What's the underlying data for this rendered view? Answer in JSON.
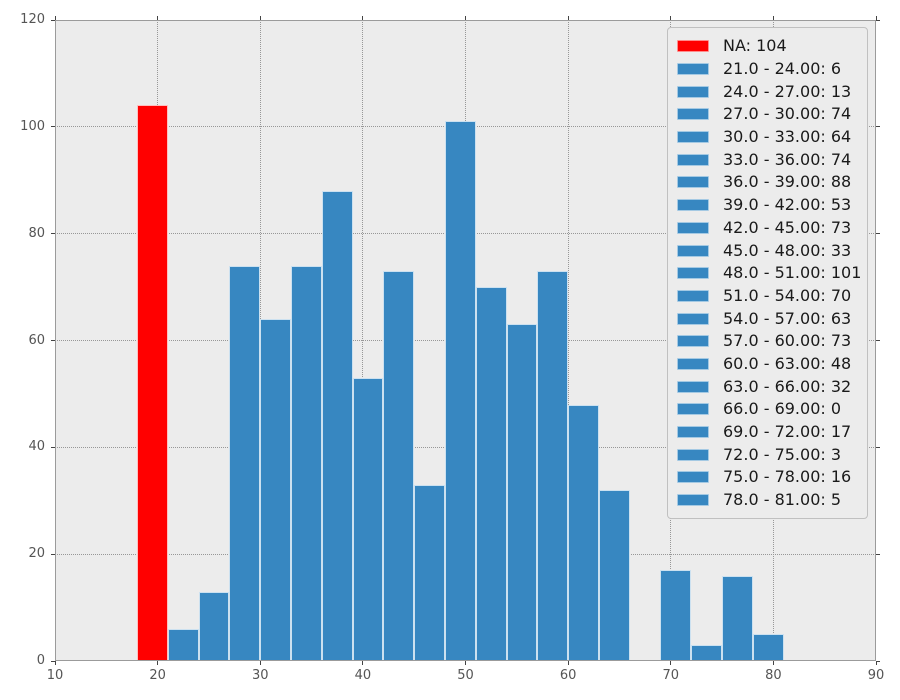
{
  "chart_data": {
    "type": "bar",
    "title": "",
    "xlabel": "",
    "ylabel": "",
    "xlim": [
      10,
      90
    ],
    "ylim": [
      0,
      120
    ],
    "x_ticks": [
      "10",
      "20",
      "30",
      "40",
      "50",
      "60",
      "70",
      "80",
      "90"
    ],
    "y_ticks": [
      "0",
      "20",
      "40",
      "60",
      "80",
      "100",
      "120"
    ],
    "grid": "dotted",
    "legend_position": "upper-right",
    "plot_background": "#ececec",
    "bar_color": "#3787c1",
    "na_color": "#ff0000",
    "series": [
      {
        "name": "NA: 104",
        "x_start": 18,
        "x_end": 21,
        "value": 104,
        "color": "#ff0000"
      },
      {
        "name": "21.0 - 24.00: 6",
        "x_start": 21,
        "x_end": 24,
        "value": 6,
        "color": "#3787c1"
      },
      {
        "name": "24.0 - 27.00: 13",
        "x_start": 24,
        "x_end": 27,
        "value": 13,
        "color": "#3787c1"
      },
      {
        "name": "27.0 - 30.00: 74",
        "x_start": 27,
        "x_end": 30,
        "value": 74,
        "color": "#3787c1"
      },
      {
        "name": "30.0 - 33.00: 64",
        "x_start": 30,
        "x_end": 33,
        "value": 64,
        "color": "#3787c1"
      },
      {
        "name": "33.0 - 36.00: 74",
        "x_start": 33,
        "x_end": 36,
        "value": 74,
        "color": "#3787c1"
      },
      {
        "name": "36.0 - 39.00: 88",
        "x_start": 36,
        "x_end": 39,
        "value": 88,
        "color": "#3787c1"
      },
      {
        "name": "39.0 - 42.00: 53",
        "x_start": 39,
        "x_end": 42,
        "value": 53,
        "color": "#3787c1"
      },
      {
        "name": "42.0 - 45.00: 73",
        "x_start": 42,
        "x_end": 45,
        "value": 73,
        "color": "#3787c1"
      },
      {
        "name": "45.0 - 48.00: 33",
        "x_start": 45,
        "x_end": 48,
        "value": 33,
        "color": "#3787c1"
      },
      {
        "name": "48.0 - 51.00: 101",
        "x_start": 48,
        "x_end": 51,
        "value": 101,
        "color": "#3787c1"
      },
      {
        "name": "51.0 - 54.00: 70",
        "x_start": 51,
        "x_end": 54,
        "value": 70,
        "color": "#3787c1"
      },
      {
        "name": "54.0 - 57.00: 63",
        "x_start": 54,
        "x_end": 57,
        "value": 63,
        "color": "#3787c1"
      },
      {
        "name": "57.0 - 60.00: 73",
        "x_start": 57,
        "x_end": 60,
        "value": 73,
        "color": "#3787c1"
      },
      {
        "name": "60.0 - 63.00: 48",
        "x_start": 60,
        "x_end": 63,
        "value": 48,
        "color": "#3787c1"
      },
      {
        "name": "63.0 - 66.00: 32",
        "x_start": 63,
        "x_end": 66,
        "value": 32,
        "color": "#3787c1"
      },
      {
        "name": "66.0 - 69.00: 0",
        "x_start": 66,
        "x_end": 69,
        "value": 0,
        "color": "#3787c1"
      },
      {
        "name": "69.0 - 72.00: 17",
        "x_start": 69,
        "x_end": 72,
        "value": 17,
        "color": "#3787c1"
      },
      {
        "name": "72.0 - 75.00: 3",
        "x_start": 72,
        "x_end": 75,
        "value": 3,
        "color": "#3787c1"
      },
      {
        "name": "75.0 - 78.00: 16",
        "x_start": 75,
        "x_end": 78,
        "value": 16,
        "color": "#3787c1"
      },
      {
        "name": "78.0 - 81.00: 5",
        "x_start": 78,
        "x_end": 81,
        "value": 5,
        "color": "#3787c1"
      }
    ]
  }
}
